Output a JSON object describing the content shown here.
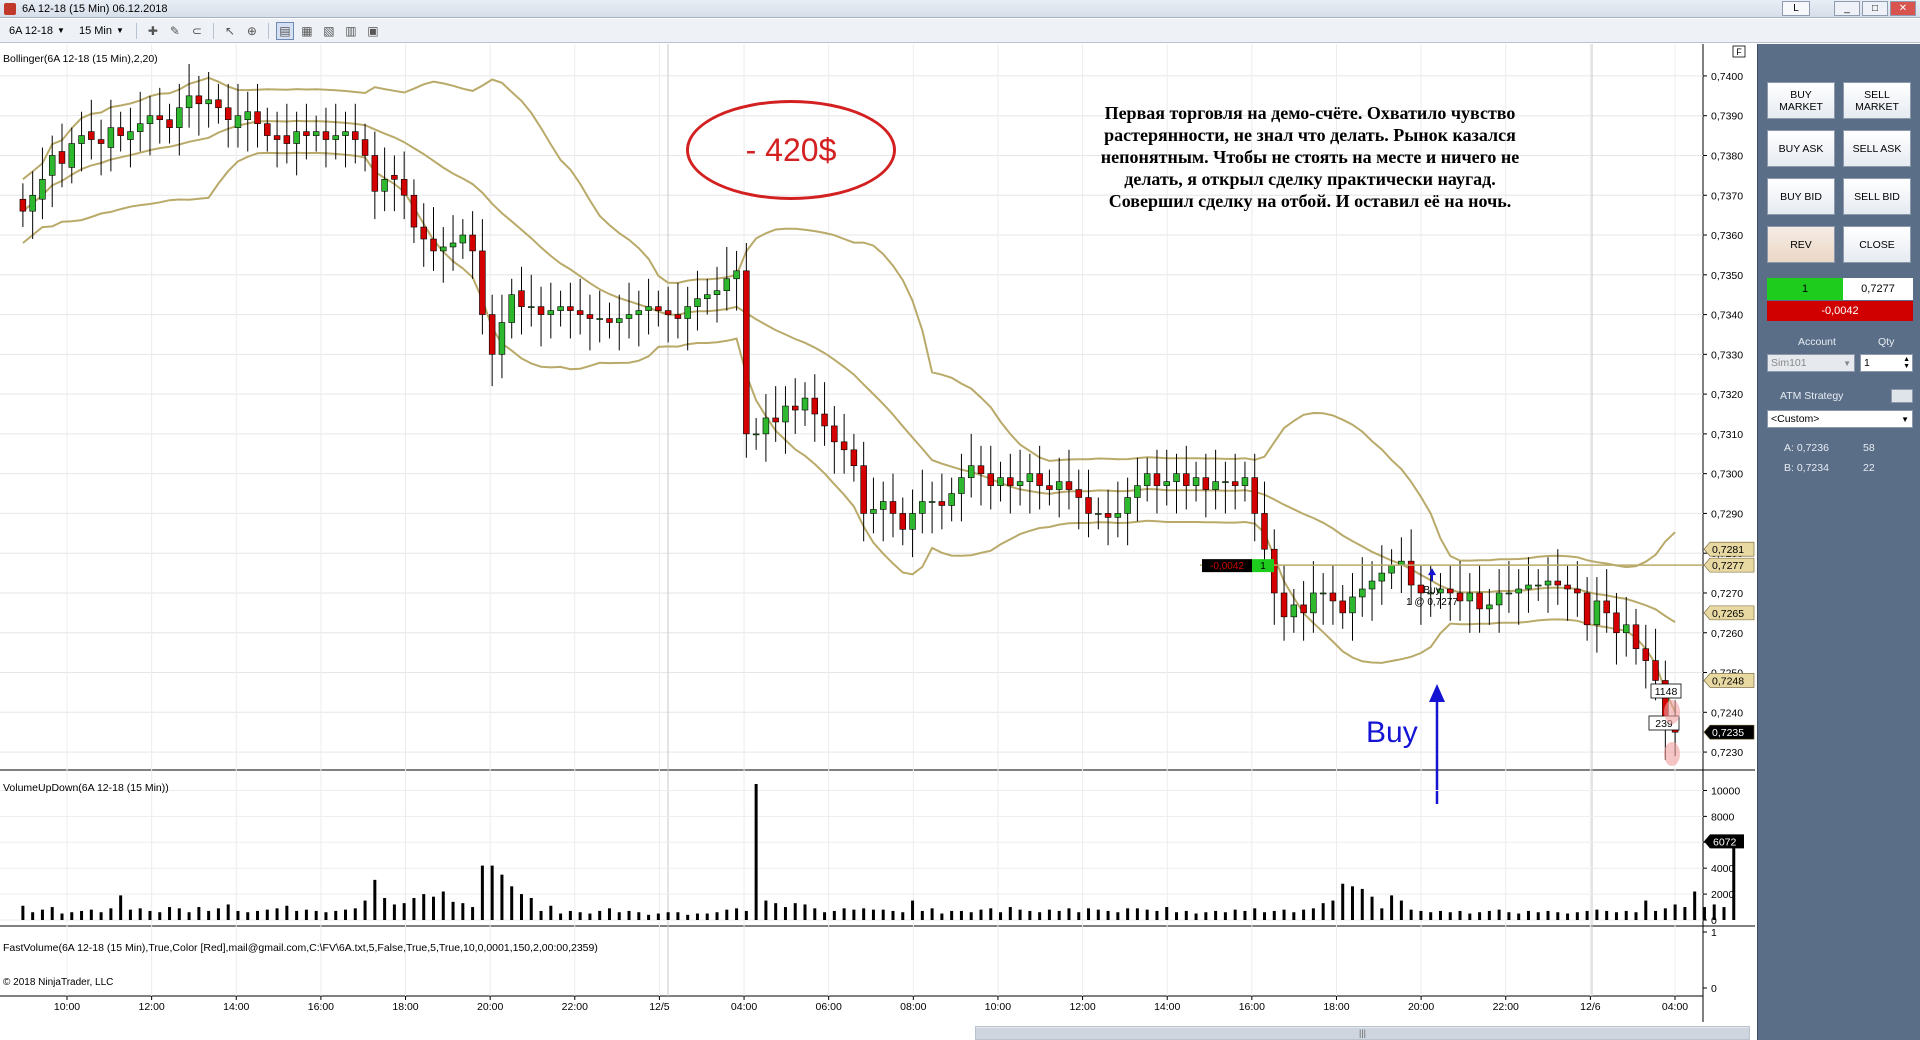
{
  "window": {
    "title": "6A 12-18 (15 Min)  06.12.2018",
    "l_button": "L",
    "min": "_",
    "max": "□",
    "close": "✕"
  },
  "toolbar": {
    "instrument": "6A 12-18",
    "interval": "15 Min"
  },
  "chart_data": [
    {
      "type": "candlestick",
      "indicator_label": "Bollinger(6A 12-18 (15 Min),2,20)",
      "y_ticks": [
        "0,7400",
        "0,7390",
        "0,7380",
        "0,7370",
        "0,7360",
        "0,7350",
        "0,7340",
        "0,7330",
        "0,7320",
        "0,7310",
        "0,7300",
        "0,7290",
        "0,7280",
        "0,7270",
        "0,7260",
        "0,7250",
        "0,7240",
        "0,7230"
      ],
      "ylim": [
        0.7227,
        0.7403
      ],
      "price_markers": [
        {
          "label": "0,7281",
          "value": 0.7281,
          "style": "tan"
        },
        {
          "label": "0,7277",
          "value": 0.7277,
          "style": "tan"
        },
        {
          "label": "0,7265",
          "value": 0.7265,
          "style": "tan"
        },
        {
          "label": "0,7248",
          "value": 0.7248,
          "style": "tan"
        },
        {
          "label": "0,7235",
          "value": 0.7235,
          "style": "black"
        }
      ],
      "position_badge": {
        "pnl": "-0,0042",
        "qty": "1"
      },
      "execution": {
        "label_top": "Buy",
        "label_bottom": "1 @ 0,7277",
        "price": 0.7277
      },
      "flags": [
        "1148",
        "239"
      ],
      "series_close": [
        0.7366,
        0.737,
        0.7374,
        0.738,
        0.7378,
        0.7383,
        0.7385,
        0.7384,
        0.7383,
        0.7387,
        0.7385,
        0.7386,
        0.7388,
        0.739,
        0.7389,
        0.7387,
        0.7392,
        0.7395,
        0.7393,
        0.7394,
        0.7392,
        0.7389,
        0.739,
        0.7391,
        0.7388,
        0.7385,
        0.7384,
        0.7383,
        0.7386,
        0.7385,
        0.7386,
        0.7384,
        0.7385,
        0.7386,
        0.7384,
        0.738,
        0.7371,
        0.7374,
        0.7374,
        0.737,
        0.7362,
        0.7359,
        0.7356,
        0.7357,
        0.7358,
        0.736,
        0.7356,
        0.734,
        0.733,
        0.7338,
        0.7345,
        0.7342,
        0.7342,
        0.734,
        0.7341,
        0.7342,
        0.7341,
        0.734,
        0.7339,
        0.7339,
        0.7338,
        0.7339,
        0.734,
        0.7341,
        0.7342,
        0.7341,
        0.734,
        0.7339,
        0.7342,
        0.7344,
        0.7345,
        0.7346,
        0.7349,
        0.7351,
        0.731,
        0.731,
        0.7314,
        0.7313,
        0.7317,
        0.7316,
        0.7319,
        0.7315,
        0.7312,
        0.7308,
        0.7306,
        0.7302,
        0.729,
        0.7291,
        0.7293,
        0.729,
        0.7286,
        0.729,
        0.7293,
        0.7293,
        0.7292,
        0.7295,
        0.7299,
        0.7302,
        0.73,
        0.7297,
        0.7299,
        0.7297,
        0.7298,
        0.73,
        0.7297,
        0.7296,
        0.7298,
        0.7296,
        0.7294,
        0.729,
        0.729,
        0.7289,
        0.729,
        0.7294,
        0.7297,
        0.73,
        0.7297,
        0.7298,
        0.73,
        0.7297,
        0.7299,
        0.7296,
        0.7298,
        0.7298,
        0.7297,
        0.7299,
        0.729,
        0.7281,
        0.727,
        0.7264,
        0.7267,
        0.7265,
        0.727,
        0.727,
        0.7268,
        0.7265,
        0.7269,
        0.7271,
        0.7273,
        0.7275,
        0.7277,
        0.7278,
        0.7272,
        0.727,
        0.727,
        0.7271,
        0.727,
        0.7268,
        0.727,
        0.7266,
        0.7267,
        0.727,
        0.727,
        0.7271,
        0.7272,
        0.7272,
        0.7273,
        0.7272,
        0.7271,
        0.727,
        0.7262,
        0.7268,
        0.7265,
        0.726,
        0.7262,
        0.7256,
        0.7253,
        0.7248,
        0.7236,
        0.7235
      ],
      "series_open": [
        0.7369,
        0.7366,
        0.7369,
        0.7375,
        0.7381,
        0.7377,
        0.7383,
        0.7386,
        0.7384,
        0.7382,
        0.7387,
        0.7384,
        0.7386,
        0.7388,
        0.739,
        0.7389,
        0.7387,
        0.7392,
        0.7395,
        0.7393,
        0.7394,
        0.7392,
        0.7387,
        0.7389,
        0.7391,
        0.7388,
        0.7385,
        0.7385,
        0.7383,
        0.7386,
        0.7385,
        0.7386,
        0.7384,
        0.7385,
        0.7386,
        0.7384,
        0.738,
        0.7371,
        0.7375,
        0.7374,
        0.737,
        0.7362,
        0.7359,
        0.7356,
        0.7357,
        0.7358,
        0.736,
        0.7356,
        0.734,
        0.733,
        0.7338,
        0.7346,
        0.7342,
        0.7342,
        0.734,
        0.7341,
        0.7342,
        0.7341,
        0.734,
        0.7339,
        0.7339,
        0.7338,
        0.7339,
        0.734,
        0.7341,
        0.7342,
        0.7341,
        0.734,
        0.7339,
        0.7342,
        0.7344,
        0.7345,
        0.7346,
        0.7349,
        0.7351,
        0.731,
        0.731,
        0.7314,
        0.7313,
        0.7317,
        0.7316,
        0.7319,
        0.7315,
        0.7312,
        0.7308,
        0.7306,
        0.7302,
        0.729,
        0.7291,
        0.7293,
        0.729,
        0.7286,
        0.729,
        0.7293,
        0.7293,
        0.7292,
        0.7295,
        0.7299,
        0.7302,
        0.73,
        0.7297,
        0.7299,
        0.7297,
        0.7298,
        0.73,
        0.7297,
        0.7296,
        0.7298,
        0.7296,
        0.7294,
        0.729,
        0.729,
        0.7289,
        0.729,
        0.7294,
        0.7297,
        0.73,
        0.7297,
        0.7298,
        0.73,
        0.7297,
        0.7299,
        0.7296,
        0.7298,
        0.7298,
        0.7297,
        0.7299,
        0.729,
        0.7281,
        0.727,
        0.7264,
        0.7267,
        0.7265,
        0.727,
        0.727,
        0.7268,
        0.7265,
        0.7269,
        0.7271,
        0.7273,
        0.7275,
        0.7277,
        0.7278,
        0.7272,
        0.727,
        0.727,
        0.7271,
        0.727,
        0.7268,
        0.727,
        0.7266,
        0.7267,
        0.727,
        0.727,
        0.7271,
        0.7272,
        0.7272,
        0.7273,
        0.7272,
        0.7271,
        0.727,
        0.7262,
        0.7268,
        0.7265,
        0.726,
        0.7262,
        0.7256,
        0.7253,
        0.7248,
        0.7236
      ]
    },
    {
      "type": "bar",
      "indicator_label": "VolumeUpDown(6A 12-18 (15 Min))",
      "y_ticks": [
        "10000",
        "8000",
        "6000",
        "4000",
        "2000",
        "0"
      ],
      "ylim": [
        0,
        10500
      ],
      "last_value_label": "6072",
      "values": [
        1100,
        600,
        800,
        1000,
        500,
        600,
        700,
        800,
        600,
        900,
        1900,
        800,
        900,
        700,
        600,
        1000,
        900,
        600,
        1000,
        700,
        900,
        1200,
        700,
        600,
        700,
        800,
        900,
        1100,
        700,
        800,
        700,
        600,
        700,
        800,
        900,
        1500,
        3100,
        1700,
        1200,
        1300,
        1700,
        2000,
        1800,
        2200,
        1400,
        1300,
        1000,
        4200,
        4200,
        3500,
        2600,
        2000,
        1700,
        700,
        1100,
        500,
        700,
        600,
        500,
        700,
        900,
        600,
        700,
        600,
        400,
        500,
        600,
        600,
        400,
        500,
        500,
        600,
        800,
        900,
        700,
        10500,
        1500,
        1300,
        1000,
        1300,
        1200,
        900,
        600,
        700,
        900,
        800,
        900,
        800,
        800,
        700,
        600,
        1500,
        700,
        900,
        500,
        700,
        700,
        600,
        800,
        900,
        600,
        1000,
        800,
        700,
        600,
        800,
        700,
        900,
        600,
        900,
        800,
        700,
        600,
        900,
        900,
        800,
        700,
        1000,
        600,
        700,
        500,
        600,
        700,
        600,
        800,
        700,
        900,
        600,
        700,
        800,
        600,
        800,
        900,
        1300,
        1500,
        2800,
        2600,
        2400,
        1800,
        900,
        1900,
        1500,
        800,
        700,
        600,
        700,
        600,
        700,
        500,
        600,
        700,
        800,
        600,
        500,
        700,
        600,
        700,
        600,
        500,
        600,
        700,
        800,
        700,
        600,
        700,
        600,
        1500,
        700,
        900,
        1200,
        1000,
        2200,
        1000,
        1200,
        1000,
        6072
      ]
    },
    {
      "type": "line",
      "indicator_label": "FastVolume(6A 12-18 (15 Min),True,Color [Red],mail@gmail.com,C:\\FV\\6A.txt,5,False,True,5,True,10,0,0001,150,2,00:00,2359)",
      "y_ticks": [
        "1",
        "0"
      ],
      "ylim": [
        0,
        1
      ]
    }
  ],
  "x_axis": {
    "ticks": [
      "10:00",
      "12:00",
      "14:00",
      "16:00",
      "18:00",
      "20:00",
      "22:00",
      "12/5",
      "04:00",
      "06:00",
      "08:00",
      "10:00",
      "12:00",
      "14:00",
      "16:00",
      "18:00",
      "20:00",
      "22:00",
      "12/6",
      "04:00"
    ]
  },
  "annotations": {
    "loss": "- 420$",
    "note": "Первая торговля на демо-счёте. Охватило чувство растерянности, не знал что делать. Рынок казался непонятным. Чтобы не стоять на месте и ничего не делать, я открыл сделку практически наугад. Совершил сделку на отбой. И оставил её на ночь.",
    "buy_arrow_label": "Buy",
    "copyright": "© 2018 NinjaTrader, LLC",
    "top_right_box": "F"
  },
  "panel": {
    "buy_market": "BUY\nMARKET",
    "sell_market": "SELL\nMARKET",
    "buy_ask": "BUY ASK",
    "sell_ask": "SELL ASK",
    "buy_bid": "BUY BID",
    "sell_bid": "SELL BID",
    "rev": "REV",
    "close": "CLOSE",
    "position_qty": "1",
    "position_price": "0,7277",
    "pnl": "-0,0042",
    "account_label": "Account",
    "qty_label": "Qty",
    "account_value": "Sim101",
    "qty_value": "1",
    "atm_label": "ATM Strategy",
    "atm_value": "<Custom>",
    "ask_label": "A: 0,7236",
    "ask_size": "58",
    "bid_label": "B: 0,7234",
    "bid_size": "22"
  },
  "colors": {
    "up": "#2eb82e",
    "down": "#d40000",
    "band": "#b9aa6a",
    "panel_bg": "#5b6e87",
    "position_green": "#1ecc1e",
    "pnl_red": "#d00000"
  }
}
